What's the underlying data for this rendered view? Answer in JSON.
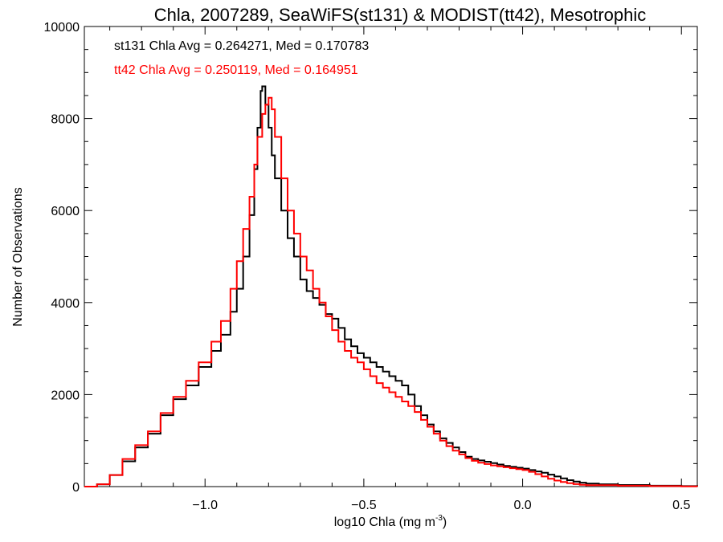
{
  "chart_data": {
    "type": "line",
    "step": true,
    "title": "Chla, 2007289, SeaWiFS(st131) & MODIST(tt42), Mesotrophic",
    "xlabel": "log10 Chla (mg m",
    "xlabel_sup": "-3",
    "xlabel_close": ")",
    "ylabel": "Number of Observations",
    "xlim": [
      -1.38,
      0.55
    ],
    "ylim": [
      0,
      10000
    ],
    "grid": false,
    "x_major_ticks": [
      -1.0,
      -0.5,
      0.0,
      0.5
    ],
    "x_tick_labels": [
      "−1.0",
      "−0.5",
      "0.0",
      "0.5"
    ],
    "y_major_ticks": [
      0,
      2000,
      4000,
      6000,
      8000,
      10000
    ],
    "y_tick_labels": [
      "0",
      "2000",
      "4000",
      "6000",
      "8000",
      "10000"
    ],
    "annotations": [
      {
        "text": "st131 Chla Avg = 0.264271, Med = 0.170783",
        "color": "#000000"
      },
      {
        "text": "tt42 Chla Avg = 0.250119, Med = 0.164951",
        "color": "#ff0000"
      }
    ],
    "series": [
      {
        "color": "#000000",
        "points": [
          [
            -1.38,
            0
          ],
          [
            -1.34,
            50
          ],
          [
            -1.3,
            250
          ],
          [
            -1.26,
            550
          ],
          [
            -1.22,
            850
          ],
          [
            -1.18,
            1150
          ],
          [
            -1.14,
            1550
          ],
          [
            -1.1,
            1900
          ],
          [
            -1.06,
            2200
          ],
          [
            -1.02,
            2600
          ],
          [
            -0.98,
            2950
          ],
          [
            -0.95,
            3300
          ],
          [
            -0.92,
            3800
          ],
          [
            -0.9,
            4300
          ],
          [
            -0.88,
            5000
          ],
          [
            -0.86,
            5900
          ],
          [
            -0.845,
            6900
          ],
          [
            -0.835,
            7800
          ],
          [
            -0.825,
            8600
          ],
          [
            -0.82,
            8700
          ],
          [
            -0.81,
            8300
          ],
          [
            -0.8,
            7800
          ],
          [
            -0.79,
            7200
          ],
          [
            -0.78,
            6700
          ],
          [
            -0.76,
            6000
          ],
          [
            -0.74,
            5400
          ],
          [
            -0.72,
            5000
          ],
          [
            -0.7,
            4500
          ],
          [
            -0.68,
            4250
          ],
          [
            -0.66,
            4100
          ],
          [
            -0.64,
            3950
          ],
          [
            -0.62,
            3750
          ],
          [
            -0.6,
            3650
          ],
          [
            -0.58,
            3450
          ],
          [
            -0.56,
            3200
          ],
          [
            -0.54,
            3050
          ],
          [
            -0.52,
            2900
          ],
          [
            -0.5,
            2800
          ],
          [
            -0.48,
            2700
          ],
          [
            -0.46,
            2600
          ],
          [
            -0.44,
            2500
          ],
          [
            -0.42,
            2400
          ],
          [
            -0.4,
            2300
          ],
          [
            -0.38,
            2200
          ],
          [
            -0.36,
            2000
          ],
          [
            -0.34,
            1750
          ],
          [
            -0.32,
            1550
          ],
          [
            -0.3,
            1350
          ],
          [
            -0.28,
            1200
          ],
          [
            -0.26,
            1050
          ],
          [
            -0.24,
            950
          ],
          [
            -0.22,
            850
          ],
          [
            -0.2,
            750
          ],
          [
            -0.18,
            650
          ],
          [
            -0.16,
            600
          ],
          [
            -0.14,
            570
          ],
          [
            -0.12,
            540
          ],
          [
            -0.1,
            510
          ],
          [
            -0.08,
            480
          ],
          [
            -0.06,
            450
          ],
          [
            -0.04,
            430
          ],
          [
            -0.02,
            410
          ],
          [
            0.0,
            390
          ],
          [
            0.02,
            360
          ],
          [
            0.04,
            330
          ],
          [
            0.06,
            300
          ],
          [
            0.08,
            260
          ],
          [
            0.1,
            220
          ],
          [
            0.12,
            180
          ],
          [
            0.14,
            140
          ],
          [
            0.16,
            110
          ],
          [
            0.18,
            85
          ],
          [
            0.2,
            65
          ],
          [
            0.24,
            50
          ],
          [
            0.3,
            35
          ],
          [
            0.4,
            20
          ],
          [
            0.5,
            10
          ],
          [
            0.55,
            5
          ]
        ]
      },
      {
        "color": "#ff0000",
        "points": [
          [
            -1.38,
            0
          ],
          [
            -1.34,
            50
          ],
          [
            -1.3,
            250
          ],
          [
            -1.26,
            600
          ],
          [
            -1.22,
            900
          ],
          [
            -1.18,
            1200
          ],
          [
            -1.14,
            1600
          ],
          [
            -1.1,
            1950
          ],
          [
            -1.06,
            2300
          ],
          [
            -1.02,
            2700
          ],
          [
            -0.98,
            3150
          ],
          [
            -0.95,
            3600
          ],
          [
            -0.92,
            4300
          ],
          [
            -0.9,
            4900
          ],
          [
            -0.88,
            5600
          ],
          [
            -0.86,
            6300
          ],
          [
            -0.845,
            7000
          ],
          [
            -0.835,
            7600
          ],
          [
            -0.82,
            8100
          ],
          [
            -0.81,
            8300
          ],
          [
            -0.8,
            8450
          ],
          [
            -0.79,
            8200
          ],
          [
            -0.78,
            7600
          ],
          [
            -0.76,
            6700
          ],
          [
            -0.74,
            6000
          ],
          [
            -0.72,
            5500
          ],
          [
            -0.7,
            5000
          ],
          [
            -0.68,
            4700
          ],
          [
            -0.66,
            4300
          ],
          [
            -0.64,
            4000
          ],
          [
            -0.62,
            3700
          ],
          [
            -0.6,
            3400
          ],
          [
            -0.58,
            3150
          ],
          [
            -0.56,
            2950
          ],
          [
            -0.54,
            2800
          ],
          [
            -0.52,
            2700
          ],
          [
            -0.5,
            2550
          ],
          [
            -0.48,
            2400
          ],
          [
            -0.46,
            2250
          ],
          [
            -0.44,
            2150
          ],
          [
            -0.42,
            2050
          ],
          [
            -0.4,
            1950
          ],
          [
            -0.38,
            1850
          ],
          [
            -0.36,
            1750
          ],
          [
            -0.34,
            1620
          ],
          [
            -0.32,
            1450
          ],
          [
            -0.3,
            1300
          ],
          [
            -0.28,
            1150
          ],
          [
            -0.26,
            1000
          ],
          [
            -0.24,
            880
          ],
          [
            -0.22,
            780
          ],
          [
            -0.2,
            700
          ],
          [
            -0.18,
            620
          ],
          [
            -0.16,
            560
          ],
          [
            -0.14,
            520
          ],
          [
            -0.12,
            490
          ],
          [
            -0.1,
            460
          ],
          [
            -0.08,
            440
          ],
          [
            -0.06,
            420
          ],
          [
            -0.04,
            400
          ],
          [
            -0.02,
            380
          ],
          [
            0.0,
            360
          ],
          [
            0.02,
            320
          ],
          [
            0.04,
            270
          ],
          [
            0.06,
            220
          ],
          [
            0.08,
            170
          ],
          [
            0.1,
            130
          ],
          [
            0.12,
            100
          ],
          [
            0.14,
            75
          ],
          [
            0.16,
            55
          ],
          [
            0.18,
            40
          ],
          [
            0.2,
            30
          ],
          [
            0.3,
            20
          ],
          [
            0.4,
            10
          ],
          [
            0.5,
            5
          ],
          [
            0.55,
            3
          ]
        ]
      }
    ]
  }
}
